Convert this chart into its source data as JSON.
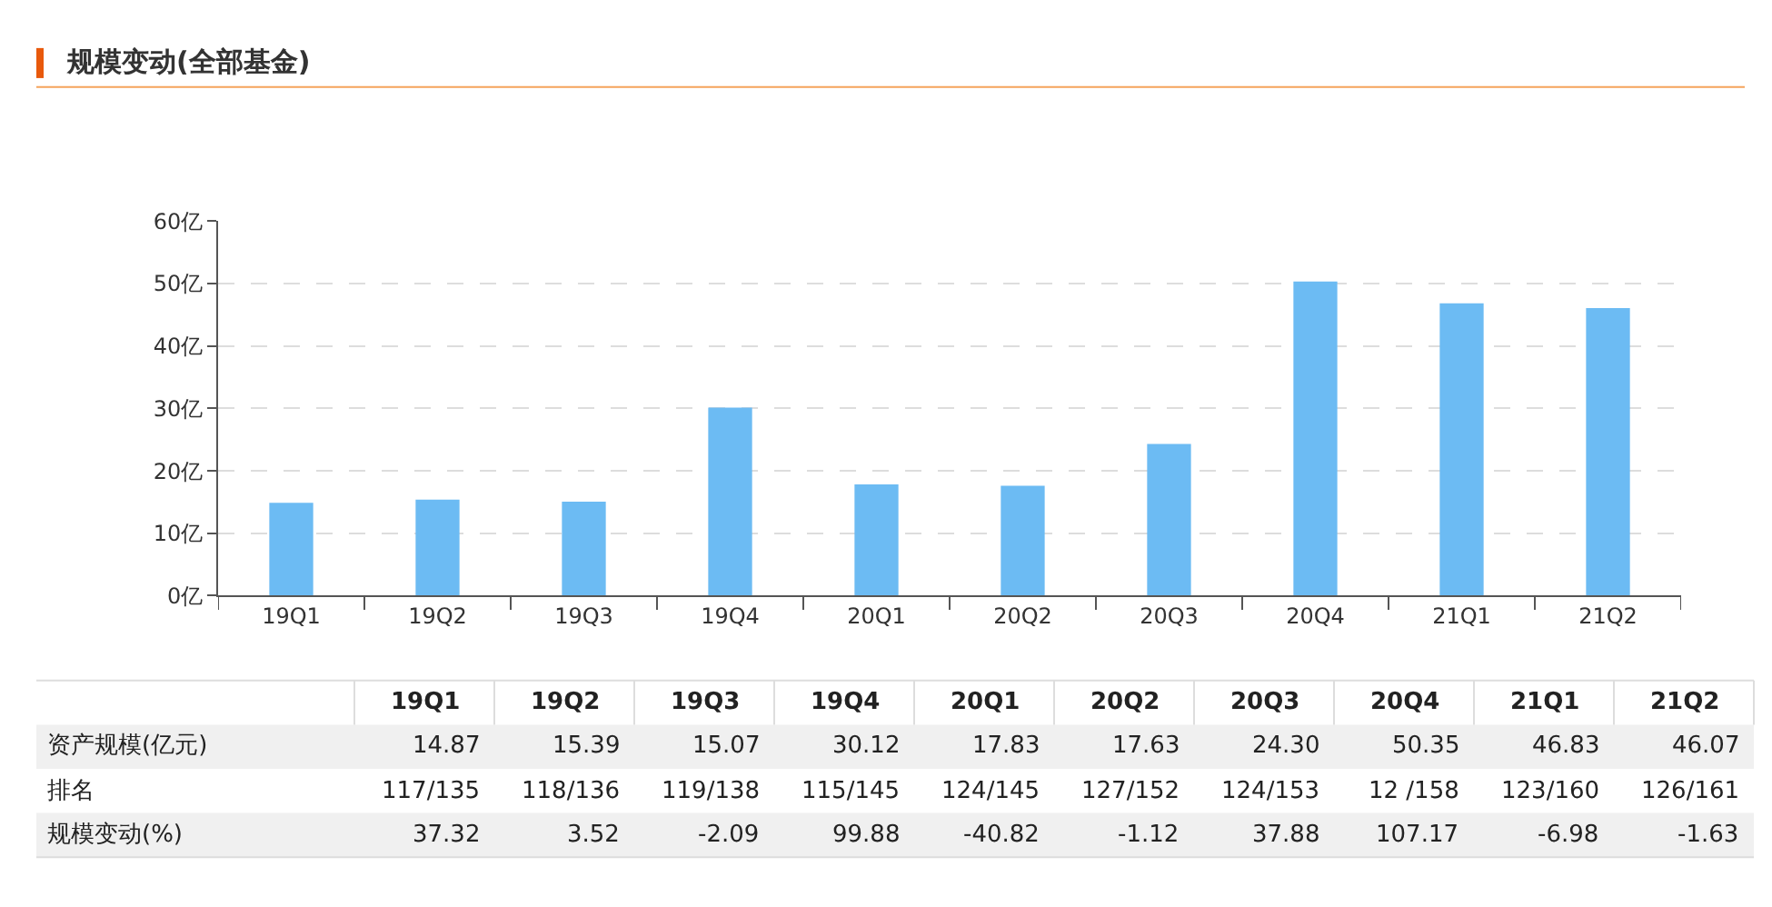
{
  "chart_data": {
    "type": "bar",
    "title": "规模变动(全部基金)",
    "categories": [
      "19Q1",
      "19Q2",
      "19Q3",
      "19Q4",
      "20Q1",
      "20Q2",
      "20Q3",
      "20Q4",
      "21Q1",
      "21Q2"
    ],
    "series": [
      {
        "color": "#6cbbf3",
        "values": [
          14.87,
          15.39,
          15.07,
          30.12,
          17.83,
          17.63,
          24.3,
          50.35,
          46.83,
          46.07
        ]
      }
    ],
    "ylim": [
      0,
      60
    ],
    "yticks": [
      {
        "value": 0,
        "label": "0亿"
      },
      {
        "value": 10,
        "label": "10亿"
      },
      {
        "value": 20,
        "label": "20亿"
      },
      {
        "value": 30,
        "label": "30亿"
      },
      {
        "value": 40,
        "label": "40亿"
      },
      {
        "value": 50,
        "label": "50亿"
      },
      {
        "value": 60,
        "label": "60亿"
      }
    ],
    "grid": "y",
    "legend": false,
    "annotations": [
      "资产规模(亿元)",
      "14.87",
      "15.39",
      "15.07",
      "30.12",
      "17.83",
      "17.63",
      "24.30",
      "50.35",
      "46.83",
      "46.07",
      "排名",
      "117/135",
      "118/136",
      "119/138",
      "115/145",
      "124/145",
      "127/152",
      "124/153",
      "12 /158",
      "123/160",
      "126/161",
      "规模变动(%)",
      "37.32",
      "3.52",
      "-2.09",
      "99.88",
      "-40.82",
      "-1.12",
      "37.88",
      "107.17",
      "-6.98",
      "-1.63"
    ]
  }
}
